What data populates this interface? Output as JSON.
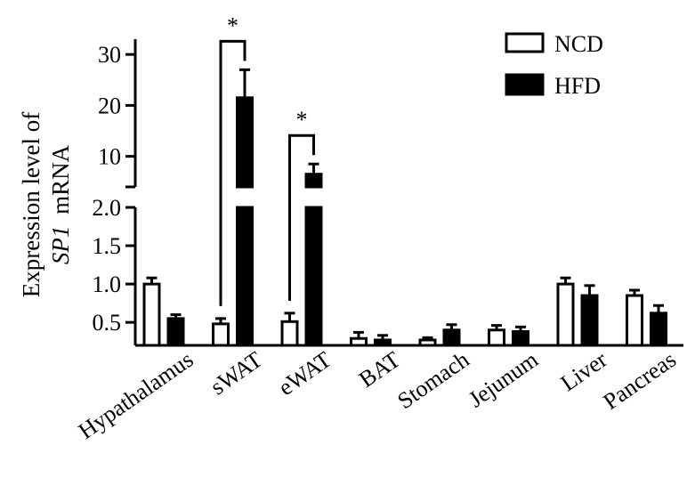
{
  "chart_data": {
    "type": "bar",
    "ylabel_prefix": "Expression level of",
    "ylabel_gene": "SP1",
    "ylabel_suffix": "mRNA",
    "categories": [
      "Hypathalamus",
      "sWAT",
      "eWAT",
      "BAT",
      "Stomach",
      "Jejunum",
      "Liver",
      "Pancreas"
    ],
    "series": [
      {
        "name": "NCD",
        "values": [
          1.0,
          0.48,
          0.51,
          0.29,
          0.27,
          0.4,
          1.0,
          0.85
        ],
        "errors": [
          0.08,
          0.07,
          0.11,
          0.08,
          0.03,
          0.06,
          0.08,
          0.07
        ],
        "fill": "#ffffff"
      },
      {
        "name": "HFD",
        "values": [
          0.55,
          21.5,
          6.5,
          0.27,
          0.4,
          0.38,
          0.85,
          0.62
        ],
        "errors": [
          0.05,
          5.5,
          2.0,
          0.06,
          0.07,
          0.06,
          0.13,
          0.1
        ],
        "fill": "#000000"
      }
    ],
    "y_axis_break": {
      "lower_range": [
        0.2,
        2.0
      ],
      "upper_range": [
        4.0,
        33.0
      ]
    },
    "yticks_lower": [
      "0.5",
      "1.0",
      "1.5",
      "2.0"
    ],
    "yticks_upper": [
      "10",
      "20",
      "30"
    ],
    "significance": [
      {
        "category": "sWAT",
        "label": "*"
      },
      {
        "category": "eWAT",
        "label": "*"
      }
    ],
    "legend_position": "top-right",
    "colors": {
      "axis": "#000000",
      "ncd": "#ffffff",
      "hfd": "#000000"
    }
  }
}
